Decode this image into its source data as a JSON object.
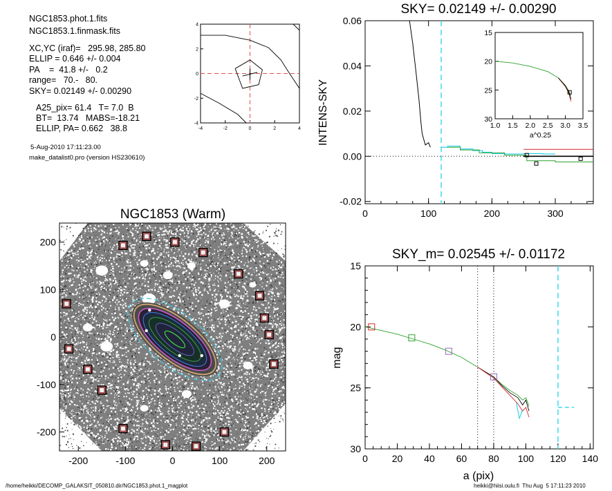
{
  "header": {
    "lines": [
      "NGC1853.phot.1.fits",
      "NGC1853.1.finmask.fits",
      "XC,YC (iraf)=   295.98, 285.80",
      "ELLIP = 0.646 +/- 0.004",
      "PA    =  41.8 +/-   0.2",
      "range=   70.-   80.",
      "SKY= 0.02149 +/- 0.00290",
      "A25_pix= 61.4   T= 7.0  B",
      "BT=  13.74   MABS=-18.21",
      "ELLIP, PA= 0.662   38.8",
      "5-Aug-2010 17:11:23.00",
      "make_datalist0.pro (version HS230610)"
    ]
  },
  "footer": {
    "path": "/home/heikki/DECOMP_GALAKSIT_050810.dir/NGC1853.phot.1_magplot",
    "user": "heikki@hiisi.oulu.fi  Thu Aug  5 17:11:23 2010"
  },
  "chart_data": [
    {
      "type": "line",
      "name": "isophote-contour-panel",
      "xlim": [
        -4,
        4
      ],
      "ylim": [
        -4,
        4
      ],
      "xticks": [
        -4,
        -2,
        0,
        2,
        4
      ],
      "yticks": [
        -4,
        -2,
        0,
        2,
        4
      ],
      "series": [
        {
          "values": [
            [
              -4,
              3.1
            ],
            [
              -2,
              3.1
            ],
            [
              0,
              2.7
            ],
            [
              1.5,
              2.1
            ],
            [
              2.5,
              1.1
            ],
            [
              3.2,
              0
            ],
            [
              4,
              -1.2
            ]
          ]
        },
        {
          "values": [
            [
              -4,
              -1.6
            ],
            [
              -2.5,
              -2.4
            ],
            [
              -1,
              -3.3
            ],
            [
              -0.3,
              -4
            ]
          ]
        },
        {
          "values": [
            [
              3.5,
              4
            ],
            [
              4,
              3.5
            ]
          ]
        },
        {
          "values": [
            [
              -1.2,
              0.4
            ],
            [
              0,
              1.1
            ],
            [
              1,
              0.3
            ],
            [
              0.7,
              -0.9
            ],
            [
              -0.6,
              -1.2
            ],
            [
              -1.2,
              0.4
            ]
          ]
        }
      ]
    },
    {
      "type": "line",
      "title": "SKY= 0.02149 +/- 0.00290",
      "ylabel": "INTENS-SKY",
      "xlim": [
        0,
        360
      ],
      "ylim": [
        -0.021,
        0.06
      ],
      "xticks": [
        0,
        100,
        200,
        300
      ],
      "yticks": [
        "0.06",
        "0.04",
        "0.02",
        "0.00",
        "-0.02"
      ],
      "yticks_values": [
        0.06,
        0.04,
        0.02,
        0.0,
        -0.02
      ],
      "series": [
        {
          "name": "profile",
          "color": "#000000",
          "values": [
            [
              70,
              0.06
            ],
            [
              75,
              0.05
            ],
            [
              80,
              0.038
            ],
            [
              85,
              0.025
            ],
            [
              88,
              0.015
            ],
            [
              90,
              0.01
            ],
            [
              92,
              0.008
            ],
            [
              95,
              0.005
            ],
            [
              100,
              0.006
            ],
            [
              103,
              0.004
            ]
          ]
        },
        {
          "name": "cyan-steps",
          "color": "#00c8e6",
          "values": [
            [
              120,
              0.004
            ],
            [
              130,
              0.004
            ],
            [
              130,
              0.0045
            ],
            [
              150,
              0.0045
            ],
            [
              150,
              0.0032
            ],
            [
              170,
              0.0032
            ],
            [
              170,
              0.0025
            ],
            [
              185,
              0.0025
            ],
            [
              185,
              0.0018
            ],
            [
              200,
              0.0018
            ],
            [
              200,
              0.0012
            ],
            [
              220,
              0.0012
            ],
            [
              220,
              0.001
            ],
            [
              250,
              0.001
            ],
            [
              250,
              0.0012
            ],
            [
              280,
              0.0012
            ],
            [
              280,
              0.001
            ],
            [
              300,
              0.001
            ]
          ]
        },
        {
          "name": "green-steps",
          "color": "#2ca02c",
          "values": [
            [
              130,
              0.004
            ],
            [
              150,
              0.004
            ],
            [
              150,
              0.0028
            ],
            [
              180,
              0.0028
            ],
            [
              180,
              0.0015
            ],
            [
              220,
              0.0015
            ],
            [
              220,
              0.0005
            ],
            [
              255,
              0.0005
            ],
            [
              255,
              -0.002
            ],
            [
              300,
              -0.002
            ],
            [
              300,
              -0.0025
            ],
            [
              360,
              -0.0025
            ]
          ]
        },
        {
          "name": "red-line",
          "color": "#d62728",
          "values": [
            [
              250,
              0.0031
            ],
            [
              360,
              0.0031
            ]
          ]
        },
        {
          "name": "sky-line",
          "color": "#000000",
          "values": [
            [
              250,
              0.0
            ],
            [
              360,
              0.0
            ]
          ]
        }
      ],
      "markers": [
        [
          255,
          0.0005
        ],
        [
          270,
          -0.0032
        ],
        [
          340,
          -0.0011
        ]
      ],
      "vline_x": 120,
      "inset": {
        "xlabel": "a^0.25",
        "xlim": [
          1.0,
          3.5
        ],
        "ylim": [
          15,
          30
        ],
        "xticks": [
          "1.0",
          "1.5",
          "2.0",
          "2.5",
          "3.0",
          "3.5"
        ],
        "xticks_values": [
          1.0,
          1.5,
          2.0,
          2.5,
          3.0,
          3.5
        ],
        "yticks": [
          "15",
          "20",
          "25",
          "30"
        ],
        "yticks_values": [
          15,
          20,
          25,
          30
        ],
        "series": [
          {
            "color": "#2ca02c",
            "values": [
              [
                1.0,
                20.0
              ],
              [
                1.5,
                20.3
              ],
              [
                2.0,
                20.9
              ],
              [
                2.5,
                21.8
              ],
              [
                2.8,
                22.9
              ],
              [
                3.0,
                24.2
              ],
              [
                3.1,
                25.2
              ],
              [
                3.15,
                26.0
              ]
            ]
          },
          {
            "color": "#d62728",
            "values": [
              [
                2.8,
                22.9
              ],
              [
                3.0,
                24.4
              ],
              [
                3.1,
                25.6
              ],
              [
                3.16,
                27.0
              ]
            ]
          },
          {
            "color": "#000000",
            "values": [
              [
                2.8,
                22.9
              ],
              [
                3.0,
                24.3
              ],
              [
                3.1,
                25.4
              ],
              [
                3.16,
                26.6
              ]
            ]
          }
        ]
      }
    },
    {
      "type": "scatter",
      "title": "NGC1853 (Warm)",
      "xlim": [
        -240,
        240
      ],
      "ylim": [
        -240,
        240
      ],
      "xticks": [
        -200,
        -100,
        0,
        100,
        200
      ],
      "yticks": [
        200,
        100,
        0,
        -100,
        -200
      ],
      "masked_stars": [
        [
          -55,
          212
        ],
        [
          -105,
          193
        ],
        [
          5,
          200
        ],
        [
          65,
          178
        ],
        [
          140,
          133
        ],
        [
          185,
          87
        ],
        [
          195,
          40
        ],
        [
          205,
          5
        ],
        [
          215,
          -57
        ],
        [
          -225,
          70
        ],
        [
          -220,
          -25
        ],
        [
          -180,
          -68
        ],
        [
          -150,
          -112
        ],
        [
          -105,
          -193
        ],
        [
          -15,
          -227
        ],
        [
          50,
          -230
        ],
        [
          110,
          -200
        ]
      ],
      "ellipse_ellip": 0.646,
      "ellipse_pa": 41.8
    },
    {
      "type": "line",
      "title": "SKY_m=  0.02545 +/- 0.01172",
      "xlabel": "a (pix)",
      "ylabel": "mag",
      "xlim": [
        0,
        142
      ],
      "ylim": [
        15,
        30
      ],
      "xticks": [
        0,
        20,
        40,
        60,
        80,
        100,
        120,
        140
      ],
      "yticks": [
        15,
        20,
        25,
        30
      ],
      "vlines_dotted": [
        70,
        80
      ],
      "vline_dashed": 120,
      "sky_segment": {
        "x": [
          120,
          130
        ],
        "y": 26.6
      },
      "series": [
        {
          "color": "#2ca02c",
          "values": [
            [
              0,
              20.0
            ],
            [
              10,
              20.3
            ],
            [
              20,
              20.6
            ],
            [
              30,
              21.0
            ],
            [
              40,
              21.4
            ],
            [
              50,
              21.9
            ],
            [
              60,
              22.5
            ],
            [
              70,
              23.3
            ],
            [
              80,
              24.1
            ],
            [
              85,
              24.7
            ],
            [
              90,
              25.2
            ],
            [
              95,
              25.6
            ],
            [
              98,
              26.0
            ],
            [
              100,
              25.8
            ],
            [
              102,
              26.5
            ]
          ]
        },
        {
          "color": "#000000",
          "values": [
            [
              70,
              23.3
            ],
            [
              80,
              24.1
            ],
            [
              85,
              24.8
            ],
            [
              90,
              25.4
            ],
            [
              95,
              25.8
            ],
            [
              98,
              26.4
            ],
            [
              100,
              26.0
            ],
            [
              102,
              26.9
            ]
          ]
        },
        {
          "color": "#d62728",
          "values": [
            [
              70,
              23.3
            ],
            [
              80,
              24.2
            ],
            [
              85,
              24.9
            ],
            [
              90,
              25.6
            ],
            [
              95,
              26.3
            ],
            [
              98,
              26.9
            ],
            [
              100,
              26.6
            ],
            [
              102,
              27.4
            ]
          ]
        },
        {
          "color": "#00c8e6",
          "values": [
            [
              94,
              26.2
            ],
            [
              96,
              27.5
            ],
            [
              98,
              26.8
            ]
          ]
        }
      ],
      "squares": [
        {
          "x": 4,
          "y": 20.0,
          "color": "#d62728"
        },
        {
          "x": 29,
          "y": 20.9,
          "color": "#2ca02c"
        },
        {
          "x": 52,
          "y": 22.0,
          "color": "#9467bd"
        },
        {
          "x": 80,
          "y": 24.1,
          "color": "#9467bd"
        }
      ]
    }
  ]
}
